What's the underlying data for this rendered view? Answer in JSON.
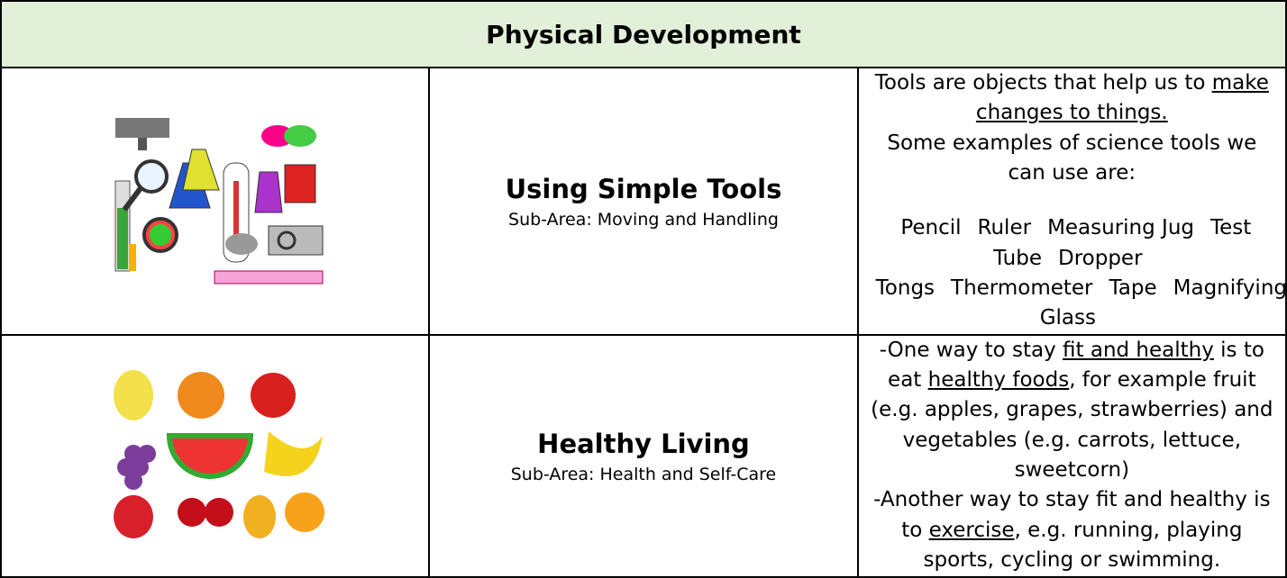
{
  "header": {
    "title": "Physical Development"
  },
  "rows": [
    {
      "title": "Using Simple Tools",
      "sub_area": "Sub-Area: Moving and Handling",
      "paragraphs": [
        [
          {
            "text": "Tools are objects that help us to "
          },
          {
            "text": "make changes to things.",
            "underline": true
          }
        ],
        [
          {
            "text": "Some examples of science tools we can use are:"
          }
        ]
      ],
      "tool_lines": [
        [
          "Pencil",
          "Ruler",
          "Measuring Jug",
          "Test Tube",
          "Dropper"
        ],
        [
          "Tongs",
          "Thermometer",
          "Tape",
          "Magnifying Glass"
        ]
      ]
    },
    {
      "title": "Healthy Living",
      "sub_area": "Sub-Area: Health and Self-Care",
      "paragraphs": [
        [
          {
            "text": "-One way to stay "
          },
          {
            "text": "fit and healthy",
            "underline": true
          },
          {
            "text": " is to eat "
          },
          {
            "text": "healthy foods",
            "underline": true
          },
          {
            "text": ", for example fruit (e.g. apples, grapes, strawberries) and vegetables (e.g. carrots, lettuce, sweetcorn)"
          }
        ],
        [
          {
            "text": "-Another way to stay fit and healthy is to "
          },
          {
            "text": "exercise",
            "underline": true
          },
          {
            "text": ", e.g. running, playing sports, cycling or swimming."
          }
        ]
      ]
    }
  ]
}
